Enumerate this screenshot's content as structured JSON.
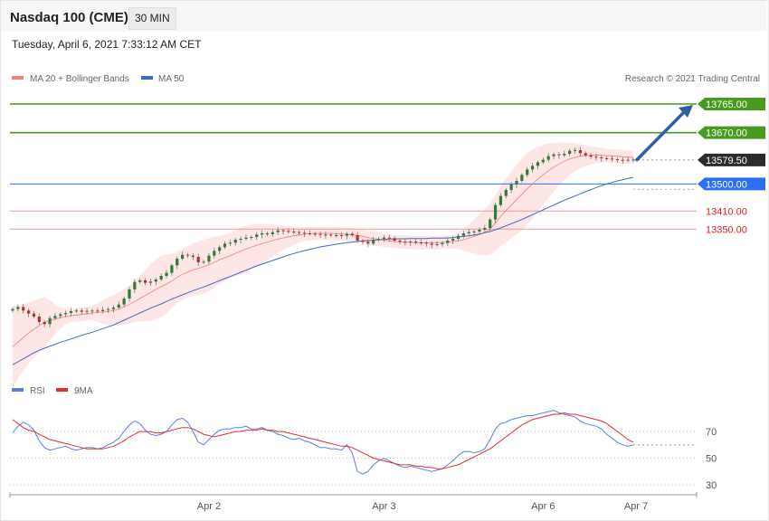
{
  "header": {
    "title": "Nasdaq 100 (CME)",
    "timeframe": "30 MIN"
  },
  "datetime": "Tuesday, April 6, 2021 7:33:12 AM CET",
  "legend": {
    "ma20": "MA 20 + Bollinger Bands",
    "ma50": "MA 50",
    "credit": "Research © 2021 Trading Central"
  },
  "rsi_legend": {
    "rsi": "RSI",
    "ma9": "9MA"
  },
  "colors": {
    "ma20": "#f08080",
    "ma50": "#3a6cc0",
    "band_fill": "#fde2e2",
    "resistance": "#4a9a1f",
    "support_line": "#f5a0a0",
    "support_text": "#e02020",
    "pivot": "#2e6ff0",
    "current": "#2b2b2b",
    "arrow": "#2d5fa6",
    "candle_up": "#2e7d32",
    "candle_down": "#c62828",
    "rsi": "#5b7fd8",
    "rsi_ma": "#e03030"
  },
  "chart_data": [
    {
      "type": "candlestick",
      "name": "price",
      "ylim": [
        12880,
        13810
      ],
      "x_ticks": [
        "Apr 2",
        "Apr 3",
        "Apr 6",
        "Apr 7"
      ],
      "levels": [
        {
          "value": 13765.0,
          "label": "13765.00",
          "kind": "resistance"
        },
        {
          "value": 13670.0,
          "label": "13670.00",
          "kind": "resistance"
        },
        {
          "value": 13579.5,
          "label": "13579.50",
          "kind": "current"
        },
        {
          "value": 13500.0,
          "label": "13500.00",
          "kind": "pivot"
        },
        {
          "value": 13410.0,
          "label": "13410.00",
          "kind": "support"
        },
        {
          "value": 13350.0,
          "label": "13350.00",
          "kind": "support"
        }
      ],
      "close": [
        13085,
        13092,
        13080,
        13070,
        13060,
        13042,
        13035,
        13055,
        13062,
        13068,
        13072,
        13078,
        13080,
        13076,
        13079,
        13080,
        13078,
        13082,
        13085,
        13090,
        13100,
        13120,
        13150,
        13175,
        13180,
        13172,
        13176,
        13183,
        13195,
        13205,
        13230,
        13252,
        13265,
        13262,
        13258,
        13240,
        13242,
        13262,
        13278,
        13290,
        13302,
        13305,
        13315,
        13318,
        13322,
        13324,
        13332,
        13336,
        13333,
        13340,
        13346,
        13344,
        13342,
        13340,
        13338,
        13336,
        13335,
        13334,
        13331,
        13332,
        13330,
        13330,
        13328,
        13335,
        13330,
        13312,
        13308,
        13302,
        13315,
        13318,
        13322,
        13320,
        13312,
        13308,
        13306,
        13309,
        13306,
        13305,
        13302,
        13298,
        13300,
        13304,
        13312,
        13318,
        13328,
        13336,
        13340,
        13342,
        13348,
        13354,
        13382,
        13430,
        13460,
        13480,
        13498,
        13510,
        13530,
        13548,
        13560,
        13572,
        13580,
        13592,
        13598,
        13595,
        13600,
        13610,
        13612,
        13602,
        13595,
        13590,
        13588,
        13585,
        13584,
        13582,
        13580,
        13578,
        13580,
        13581
      ],
      "ma20": [
        12960,
        12975,
        12990,
        13005,
        13018,
        13030,
        13040,
        13048,
        13052,
        13056,
        13060,
        13063,
        13065,
        13067,
        13070,
        13072,
        13074,
        13075,
        13077,
        13080,
        13085,
        13092,
        13100,
        13110,
        13120,
        13130,
        13140,
        13150,
        13160,
        13168,
        13178,
        13190,
        13200,
        13208,
        13215,
        13220,
        13226,
        13232,
        13240,
        13248,
        13255,
        13262,
        13270,
        13277,
        13284,
        13290,
        13296,
        13302,
        13307,
        13312,
        13317,
        13321,
        13325,
        13328,
        13331,
        13333,
        13335,
        13336,
        13336,
        13336,
        13336,
        13335,
        13334,
        13333,
        13331,
        13329,
        13326,
        13322,
        13319,
        13316,
        13313,
        13311,
        13309,
        13308,
        13307,
        13306,
        13305,
        13305,
        13305,
        13305,
        13305,
        13306,
        13307,
        13309,
        13311,
        13315,
        13320,
        13326,
        13332,
        13339,
        13350,
        13370,
        13392,
        13412,
        13430,
        13448,
        13466,
        13484,
        13500,
        13516,
        13530,
        13544,
        13556,
        13566,
        13575,
        13583,
        13588,
        13592,
        13594,
        13595,
        13596,
        13595,
        13594,
        13593,
        13592,
        13590,
        13589,
        13588
      ],
      "ma50": [
        12900,
        12910,
        12920,
        12930,
        12940,
        12948,
        12955,
        12962,
        12968,
        12975,
        12980,
        12986,
        12992,
        12998,
        13003,
        13008,
        13014,
        13020,
        13026,
        13032,
        13040,
        13048,
        13056,
        13064,
        13072,
        13080,
        13088,
        13095,
        13102,
        13110,
        13118,
        13125,
        13132,
        13139,
        13146,
        13152,
        13158,
        13165,
        13172,
        13179,
        13186,
        13193,
        13200,
        13207,
        13214,
        13221,
        13228,
        13234,
        13240,
        13246,
        13252,
        13258,
        13264,
        13269,
        13274,
        13279,
        13283,
        13287,
        13291,
        13294,
        13297,
        13300,
        13303,
        13305,
        13307,
        13309,
        13311,
        13312,
        13313,
        13315,
        13316,
        13317,
        13318,
        13318,
        13318,
        13319,
        13319,
        13319,
        13319,
        13320,
        13320,
        13320,
        13321,
        13322,
        13324,
        13326,
        13328,
        13331,
        13334,
        13338,
        13342,
        13348,
        13354,
        13361,
        13368,
        13375,
        13382,
        13390,
        13398,
        13406,
        13414,
        13422,
        13430,
        13438,
        13446,
        13453,
        13460,
        13467,
        13474,
        13481,
        13488,
        13494,
        13500,
        13505,
        13510,
        13514,
        13518,
        13521
      ]
    },
    {
      "type": "line",
      "name": "rsi",
      "ylim": [
        15,
        100
      ],
      "y_ticks": [
        70,
        50,
        30
      ],
      "rsi": [
        69,
        74,
        77,
        75,
        71,
        63,
        58,
        56,
        57,
        58,
        59,
        57,
        56,
        57,
        58,
        58,
        57,
        58,
        60,
        62,
        65,
        70,
        75,
        78,
        76,
        71,
        68,
        67,
        68,
        70,
        75,
        79,
        80,
        77,
        70,
        62,
        60,
        64,
        68,
        71,
        72,
        72,
        73,
        73,
        74,
        72,
        72,
        73,
        71,
        70,
        68,
        67,
        65,
        64,
        65,
        63,
        62,
        60,
        58,
        58,
        57,
        57,
        56,
        60,
        54,
        40,
        38,
        40,
        45,
        48,
        50,
        48,
        46,
        44,
        43,
        44,
        43,
        42,
        41,
        40,
        41,
        42,
        45,
        48,
        52,
        55,
        55,
        54,
        55,
        57,
        64,
        72,
        76,
        77,
        79,
        80,
        81,
        82,
        82,
        83,
        84,
        85,
        86,
        84,
        83,
        82,
        81,
        78,
        76,
        75,
        74,
        72,
        68,
        65,
        62,
        60,
        59,
        60
      ],
      "rsi_ma": [
        79,
        76,
        73,
        71,
        70,
        68,
        66,
        64,
        63,
        62,
        61,
        60,
        59,
        58,
        57,
        57,
        57,
        57,
        58,
        59,
        61,
        63,
        66,
        68,
        70,
        70,
        70,
        69,
        69,
        70,
        71,
        72,
        73,
        73,
        72,
        70,
        68,
        67,
        66,
        67,
        68,
        69,
        70,
        70,
        71,
        71,
        71,
        72,
        71,
        71,
        70,
        70,
        69,
        68,
        67,
        66,
        65,
        64,
        63,
        62,
        61,
        60,
        59,
        59,
        58,
        56,
        54,
        52,
        50,
        49,
        48,
        47,
        46,
        45,
        45,
        45,
        44,
        44,
        43,
        43,
        42,
        42,
        43,
        44,
        45,
        47,
        49,
        51,
        53,
        55,
        57,
        60,
        63,
        66,
        69,
        72,
        75,
        77,
        79,
        80,
        81,
        82,
        83,
        83,
        84,
        83,
        83,
        82,
        81,
        80,
        79,
        78,
        76,
        73,
        70,
        67,
        64,
        62
      ]
    }
  ]
}
